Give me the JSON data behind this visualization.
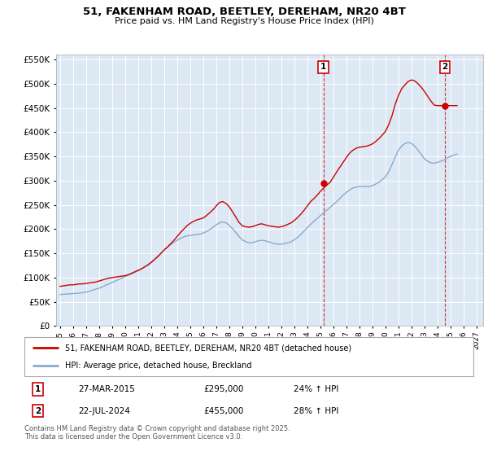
{
  "title": "51, FAKENHAM ROAD, BEETLEY, DEREHAM, NR20 4BT",
  "subtitle": "Price paid vs. HM Land Registry's House Price Index (HPI)",
  "legend_line1": "51, FAKENHAM ROAD, BEETLEY, DEREHAM, NR20 4BT (detached house)",
  "legend_line2": "HPI: Average price, detached house, Breckland",
  "footer": "Contains HM Land Registry data © Crown copyright and database right 2025.\nThis data is licensed under the Open Government Licence v3.0.",
  "red_color": "#cc0000",
  "blue_color": "#88aacc",
  "bg_color": "#dde8f5",
  "ylim": [
    0,
    560000
  ],
  "yticks": [
    0,
    50000,
    100000,
    150000,
    200000,
    250000,
    300000,
    350000,
    400000,
    450000,
    500000,
    550000
  ],
  "marker1_date": "27-MAR-2015",
  "marker1_price": "£295,000",
  "marker1_pct": "24% ↑ HPI",
  "marker2_date": "22-JUL-2024",
  "marker2_price": "£455,000",
  "marker2_pct": "28% ↑ HPI",
  "m1_x": 2015.23,
  "m2_x": 2024.55,
  "m1_y": 295000,
  "m2_y": 455000,
  "xlim_start": 1994.7,
  "xlim_end": 2027.5,
  "red_x": [
    1995.0,
    1995.25,
    1995.5,
    1995.75,
    1996.0,
    1996.25,
    1996.5,
    1996.75,
    1997.0,
    1997.25,
    1997.5,
    1997.75,
    1998.0,
    1998.25,
    1998.5,
    1998.75,
    1999.0,
    1999.25,
    1999.5,
    1999.75,
    2000.0,
    2000.25,
    2000.5,
    2000.75,
    2001.0,
    2001.25,
    2001.5,
    2001.75,
    2002.0,
    2002.25,
    2002.5,
    2002.75,
    2003.0,
    2003.25,
    2003.5,
    2003.75,
    2004.0,
    2004.25,
    2004.5,
    2004.75,
    2005.0,
    2005.25,
    2005.5,
    2005.75,
    2006.0,
    2006.25,
    2006.5,
    2006.75,
    2007.0,
    2007.25,
    2007.5,
    2007.75,
    2008.0,
    2008.25,
    2008.5,
    2008.75,
    2009.0,
    2009.25,
    2009.5,
    2009.75,
    2010.0,
    2010.25,
    2010.5,
    2010.75,
    2011.0,
    2011.25,
    2011.5,
    2011.75,
    2012.0,
    2012.25,
    2012.5,
    2012.75,
    2013.0,
    2013.25,
    2013.5,
    2013.75,
    2014.0,
    2014.25,
    2014.5,
    2014.75,
    2015.0,
    2015.25,
    2015.5,
    2015.75,
    2016.0,
    2016.25,
    2016.5,
    2016.75,
    2017.0,
    2017.25,
    2017.5,
    2017.75,
    2018.0,
    2018.25,
    2018.5,
    2018.75,
    2019.0,
    2019.25,
    2019.5,
    2019.75,
    2020.0,
    2020.25,
    2020.5,
    2020.75,
    2021.0,
    2021.25,
    2021.5,
    2021.75,
    2022.0,
    2022.25,
    2022.5,
    2022.75,
    2023.0,
    2023.25,
    2023.5,
    2023.75,
    2024.0,
    2024.25,
    2024.5,
    2024.75,
    2025.0,
    2025.25,
    2025.5
  ],
  "red_y": [
    82000,
    83000,
    84000,
    85000,
    85000,
    86000,
    87000,
    87000,
    88000,
    89000,
    90000,
    91000,
    93000,
    95000,
    97000,
    99000,
    100000,
    101000,
    102000,
    103000,
    104000,
    106000,
    109000,
    112000,
    115000,
    118000,
    122000,
    126000,
    131000,
    137000,
    143000,
    150000,
    157000,
    163000,
    170000,
    177000,
    185000,
    193000,
    200000,
    207000,
    212000,
    216000,
    219000,
    221000,
    223000,
    228000,
    234000,
    240000,
    248000,
    255000,
    257000,
    253000,
    246000,
    236000,
    225000,
    214000,
    207000,
    205000,
    204000,
    205000,
    207000,
    210000,
    211000,
    209000,
    207000,
    206000,
    205000,
    204000,
    205000,
    207000,
    210000,
    213000,
    218000,
    224000,
    231000,
    239000,
    248000,
    257000,
    263000,
    270000,
    278000,
    285000,
    291000,
    297000,
    307000,
    318000,
    328000,
    338000,
    348000,
    357000,
    363000,
    367000,
    369000,
    370000,
    371000,
    373000,
    376000,
    381000,
    387000,
    394000,
    402000,
    416000,
    434000,
    458000,
    476000,
    490000,
    498000,
    505000,
    508000,
    506000,
    500000,
    493000,
    484000,
    474000,
    464000,
    456000,
    455000,
    455000,
    455000,
    455000,
    455000,
    455000,
    455000
  ],
  "blue_x": [
    1995.0,
    1995.25,
    1995.5,
    1995.75,
    1996.0,
    1996.25,
    1996.5,
    1996.75,
    1997.0,
    1997.25,
    1997.5,
    1997.75,
    1998.0,
    1998.25,
    1998.5,
    1998.75,
    1999.0,
    1999.25,
    1999.5,
    1999.75,
    2000.0,
    2000.25,
    2000.5,
    2000.75,
    2001.0,
    2001.25,
    2001.5,
    2001.75,
    2002.0,
    2002.25,
    2002.5,
    2002.75,
    2003.0,
    2003.25,
    2003.5,
    2003.75,
    2004.0,
    2004.25,
    2004.5,
    2004.75,
    2005.0,
    2005.25,
    2005.5,
    2005.75,
    2006.0,
    2006.25,
    2006.5,
    2006.75,
    2007.0,
    2007.25,
    2007.5,
    2007.75,
    2008.0,
    2008.25,
    2008.5,
    2008.75,
    2009.0,
    2009.25,
    2009.5,
    2009.75,
    2010.0,
    2010.25,
    2010.5,
    2010.75,
    2011.0,
    2011.25,
    2011.5,
    2011.75,
    2012.0,
    2012.25,
    2012.5,
    2012.75,
    2013.0,
    2013.25,
    2013.5,
    2013.75,
    2014.0,
    2014.25,
    2014.5,
    2014.75,
    2015.0,
    2015.25,
    2015.5,
    2015.75,
    2016.0,
    2016.25,
    2016.5,
    2016.75,
    2017.0,
    2017.25,
    2017.5,
    2017.75,
    2018.0,
    2018.25,
    2018.5,
    2018.75,
    2019.0,
    2019.25,
    2019.5,
    2019.75,
    2020.0,
    2020.25,
    2020.5,
    2020.75,
    2021.0,
    2021.25,
    2021.5,
    2021.75,
    2022.0,
    2022.25,
    2022.5,
    2022.75,
    2023.0,
    2023.25,
    2023.5,
    2023.75,
    2024.0,
    2024.25,
    2024.5,
    2024.75,
    2025.0,
    2025.25,
    2025.5
  ],
  "blue_y": [
    65000,
    65500,
    66000,
    66500,
    67000,
    67500,
    68000,
    69000,
    70000,
    72000,
    74000,
    76000,
    78000,
    81000,
    84000,
    87000,
    90000,
    93000,
    96000,
    99000,
    102000,
    105000,
    108000,
    111000,
    114000,
    118000,
    122000,
    127000,
    132000,
    138000,
    144000,
    150000,
    157000,
    163000,
    168000,
    173000,
    177000,
    181000,
    184000,
    186000,
    187000,
    188000,
    189000,
    190000,
    192000,
    195000,
    199000,
    204000,
    209000,
    213000,
    215000,
    213000,
    208000,
    201000,
    193000,
    185000,
    178000,
    174000,
    172000,
    172000,
    174000,
    176000,
    177000,
    176000,
    174000,
    172000,
    170000,
    169000,
    169000,
    170000,
    172000,
    174000,
    178000,
    183000,
    189000,
    196000,
    203000,
    210000,
    216000,
    222000,
    228000,
    234000,
    239000,
    245000,
    251000,
    257000,
    263000,
    270000,
    276000,
    281000,
    285000,
    287000,
    288000,
    288000,
    288000,
    288000,
    290000,
    293000,
    297000,
    302000,
    308000,
    319000,
    333000,
    349000,
    363000,
    372000,
    377000,
    379000,
    377000,
    371000,
    363000,
    354000,
    345000,
    340000,
    337000,
    336000,
    338000,
    340000,
    343000,
    347000,
    350000,
    353000,
    355000
  ]
}
